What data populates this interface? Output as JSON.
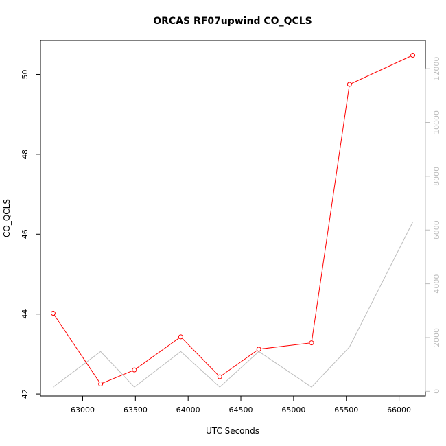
{
  "chart_data": {
    "type": "line",
    "title": "ORCAS RF07upwind CO_QCLS",
    "xlabel": "UTC Seconds",
    "ylabel": "CO_QCLS",
    "xlim": [
      62600,
      66250
    ],
    "ylim": [
      41.95,
      50.85
    ],
    "y2lim": [
      -170,
      13050
    ],
    "x_ticks": [
      63000,
      63500,
      64000,
      64500,
      65000,
      65500,
      66000
    ],
    "y_ticks": [
      42,
      44,
      46,
      48,
      50
    ],
    "y2_ticks": [
      0,
      2000,
      4000,
      6000,
      8000,
      10000,
      12000
    ],
    "grid": false,
    "series": [
      {
        "name": "",
        "axis": "left",
        "color": "#ff0000",
        "markers": "open-circle",
        "x": [
          62720,
          63170,
          63490,
          63930,
          64300,
          64670,
          65170,
          65530,
          66130
        ],
        "y": [
          44.02,
          42.25,
          42.6,
          43.43,
          42.43,
          43.12,
          43.28,
          49.75,
          50.48
        ]
      },
      {
        "name": "",
        "axis": "right",
        "color": "#bdbdbd",
        "markers": "none",
        "x": [
          62720,
          63170,
          63490,
          63930,
          64300,
          64670,
          65170,
          65530,
          66130
        ],
        "y": [
          160,
          1480,
          160,
          1480,
          160,
          1480,
          160,
          1650,
          6300
        ]
      }
    ]
  }
}
